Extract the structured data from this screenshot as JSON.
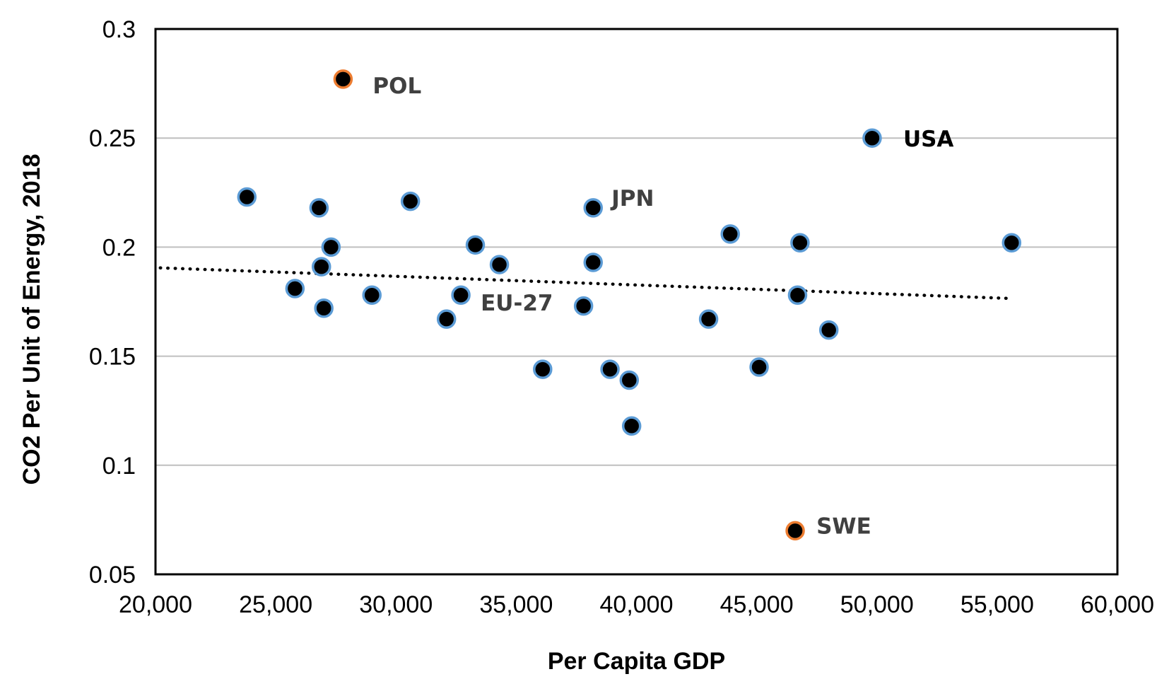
{
  "chart_data": {
    "type": "scatter",
    "xlabel": "Per Capita GDP",
    "ylabel": "CO2 Per Unit of Energy, 2018",
    "xlim": [
      20000,
      60000
    ],
    "ylim": [
      0.05,
      0.3
    ],
    "x_ticks": [
      20000,
      25000,
      30000,
      35000,
      40000,
      45000,
      50000,
      55000,
      60000
    ],
    "x_tick_labels": [
      "20,000",
      "25,000",
      "30,000",
      "35,000",
      "40,000",
      "45,000",
      "50,000",
      "55,000",
      "60,000"
    ],
    "y_ticks": [
      0.05,
      0.1,
      0.15,
      0.2,
      0.25,
      0.3
    ],
    "y_tick_labels": [
      "0.05",
      "0.1",
      "0.15",
      "0.2",
      "0.25",
      "0.3"
    ],
    "grid": "horizontal",
    "marker_fill": "#000000",
    "marker_edge_default": "#5b9bd5",
    "marker_edge_highlight": "#ed7d31",
    "trendline_color": "#000000",
    "points": [
      {
        "x": 27800,
        "y": 0.277,
        "label": "POL",
        "highlight": true,
        "label_color": "#404040"
      },
      {
        "x": 49800,
        "y": 0.25,
        "label": "USA",
        "highlight": false,
        "label_color": "#000000"
      },
      {
        "x": 38200,
        "y": 0.218,
        "label": "JPN",
        "highlight": false,
        "label_color": "#404040"
      },
      {
        "x": 32700,
        "y": 0.178,
        "label": "EU-27",
        "highlight": false,
        "label_color": "#404040"
      },
      {
        "x": 46600,
        "y": 0.07,
        "label": "SWE",
        "highlight": true,
        "label_color": "#404040"
      },
      {
        "x": 23800,
        "y": 0.223
      },
      {
        "x": 26800,
        "y": 0.218
      },
      {
        "x": 30600,
        "y": 0.221
      },
      {
        "x": 27300,
        "y": 0.2
      },
      {
        "x": 26900,
        "y": 0.191
      },
      {
        "x": 25800,
        "y": 0.181
      },
      {
        "x": 27000,
        "y": 0.172
      },
      {
        "x": 29000,
        "y": 0.178
      },
      {
        "x": 33300,
        "y": 0.201
      },
      {
        "x": 34300,
        "y": 0.192
      },
      {
        "x": 32100,
        "y": 0.167
      },
      {
        "x": 38200,
        "y": 0.193
      },
      {
        "x": 37800,
        "y": 0.173
      },
      {
        "x": 36100,
        "y": 0.144
      },
      {
        "x": 38900,
        "y": 0.144
      },
      {
        "x": 39700,
        "y": 0.139
      },
      {
        "x": 39800,
        "y": 0.118
      },
      {
        "x": 43900,
        "y": 0.206
      },
      {
        "x": 43000,
        "y": 0.167
      },
      {
        "x": 45100,
        "y": 0.145
      },
      {
        "x": 46800,
        "y": 0.202
      },
      {
        "x": 46700,
        "y": 0.178
      },
      {
        "x": 48000,
        "y": 0.162
      },
      {
        "x": 55600,
        "y": 0.202
      }
    ],
    "trendline": {
      "x": [
        20200,
        55500
      ],
      "y": [
        0.1905,
        0.1765
      ],
      "style": "dotted"
    }
  }
}
